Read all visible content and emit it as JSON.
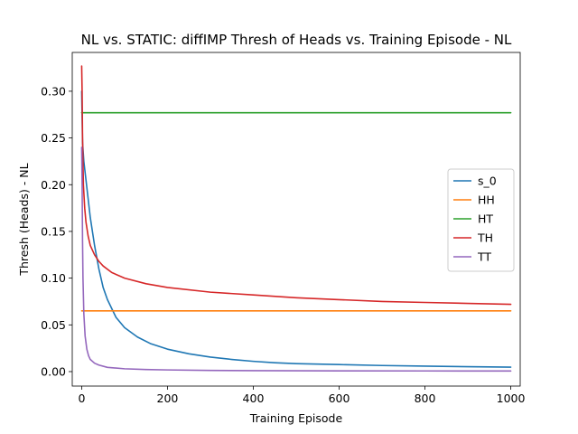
{
  "chart_data": {
    "type": "line",
    "title": "NL vs. STATIC: diffIMP Thresh of Heads vs. Training Episode - NL",
    "xlabel": "Training Episode",
    "ylabel": "Thresh (Heads) - NL",
    "xlim": [
      -22,
      1022
    ],
    "ylim": [
      -0.0155,
      0.3415
    ],
    "xticks": [
      0,
      200,
      400,
      600,
      800,
      1000
    ],
    "yticks": [
      0.0,
      0.05,
      0.1,
      0.15,
      0.2,
      0.25,
      0.3
    ],
    "xtick_labels": [
      "0",
      "200",
      "400",
      "600",
      "800",
      "1000"
    ],
    "ytick_labels": [
      "0.00",
      "0.05",
      "0.10",
      "0.15",
      "0.20",
      "0.25",
      "0.30"
    ],
    "legend_position": "center-right",
    "grid": false,
    "series": [
      {
        "name": "s_0",
        "color": "#1f77b4",
        "x": [
          0,
          2,
          5,
          10,
          20,
          30,
          40,
          50,
          60,
          80,
          100,
          130,
          160,
          200,
          250,
          300,
          350,
          400,
          450,
          500,
          600,
          700,
          800,
          900,
          1000
        ],
        "y": [
          0.3,
          0.245,
          0.225,
          0.205,
          0.165,
          0.135,
          0.11,
          0.09,
          0.077,
          0.058,
          0.047,
          0.037,
          0.03,
          0.024,
          0.019,
          0.0155,
          0.013,
          0.011,
          0.0095,
          0.0085,
          0.0075,
          0.0065,
          0.0058,
          0.0052,
          0.0048
        ]
      },
      {
        "name": "HH",
        "color": "#ff7f0e",
        "x": [
          0,
          1000
        ],
        "y": [
          0.065,
          0.065
        ]
      },
      {
        "name": "HT",
        "color": "#2ca02c",
        "x": [
          0,
          1000
        ],
        "y": [
          0.277,
          0.277
        ]
      },
      {
        "name": "TH",
        "color": "#d62728",
        "x": [
          0,
          1,
          2,
          4,
          7,
          10,
          15,
          20,
          30,
          40,
          50,
          70,
          100,
          150,
          200,
          300,
          400,
          500,
          600,
          700,
          800,
          900,
          1000
        ],
        "y": [
          0.327,
          0.3,
          0.25,
          0.2,
          0.175,
          0.16,
          0.145,
          0.135,
          0.125,
          0.118,
          0.113,
          0.106,
          0.1,
          0.094,
          0.09,
          0.085,
          0.082,
          0.079,
          0.077,
          0.075,
          0.074,
          0.073,
          0.072
        ]
      },
      {
        "name": "TT",
        "color": "#9467bd",
        "x": [
          0,
          1,
          2,
          3,
          5,
          8,
          12,
          16,
          20,
          30,
          40,
          60,
          100,
          150,
          200,
          300,
          400,
          600,
          800,
          1000
        ],
        "y": [
          0.24,
          0.2,
          0.14,
          0.1,
          0.062,
          0.038,
          0.024,
          0.017,
          0.013,
          0.009,
          0.007,
          0.0045,
          0.003,
          0.0022,
          0.0018,
          0.0013,
          0.001,
          0.0008,
          0.0007,
          0.0006
        ]
      }
    ]
  }
}
